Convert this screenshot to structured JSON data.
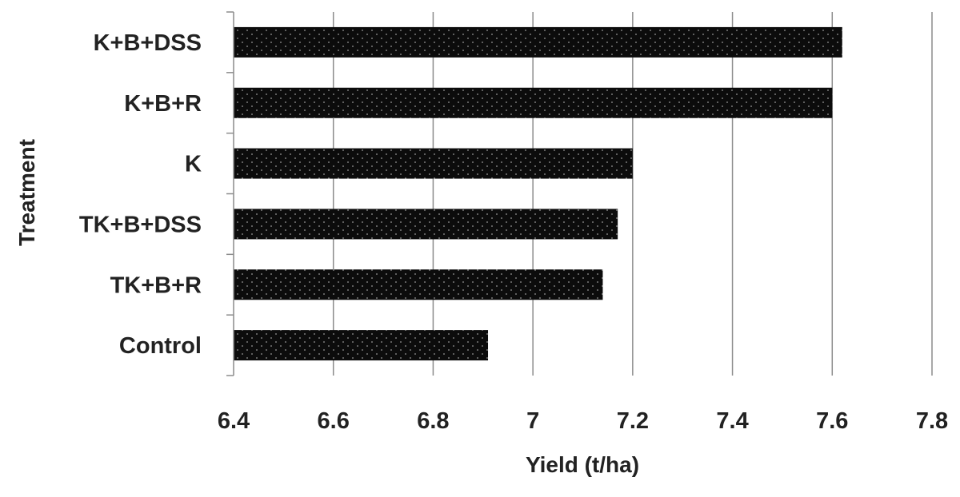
{
  "chart_data": {
    "type": "bar",
    "orientation": "horizontal",
    "categories": [
      "K+B+DSS",
      "K+B+R",
      "K",
      "TK+B+DSS",
      "TK+B+R",
      "Control"
    ],
    "values": [
      7.62,
      7.6,
      7.2,
      7.17,
      7.14,
      6.91
    ],
    "xlabel": "Yield (t/ha)",
    "ylabel": "Treatment",
    "xlim": [
      6.4,
      7.8
    ],
    "xticks": [
      "6.4",
      "6.6",
      "6.8",
      "7",
      "7.2",
      "7.4",
      "7.6",
      "7.8"
    ],
    "grid": "vertical",
    "legend": "none",
    "bar_color": "#111111",
    "bar_pattern": "dotted"
  }
}
